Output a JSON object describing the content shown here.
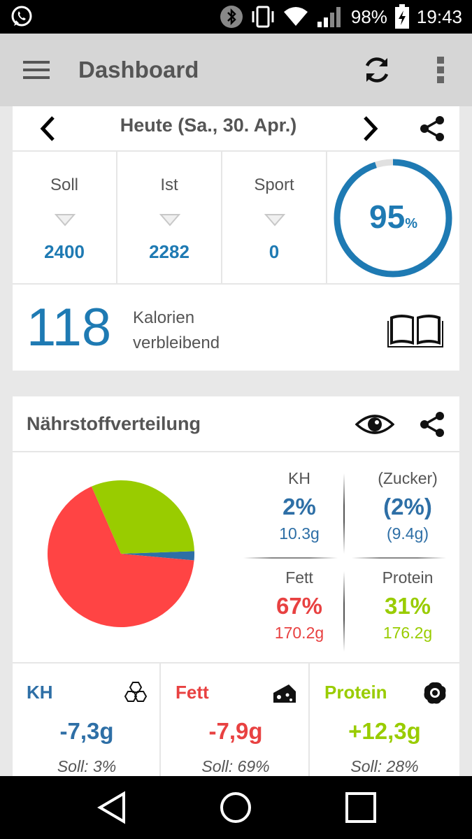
{
  "status_bar": {
    "battery_pct": "98%",
    "time": "19:43",
    "icons": [
      "whatsapp-icon",
      "bluetooth-icon",
      "vibrate-icon",
      "wifi-icon",
      "signal-icon",
      "battery-charging-icon"
    ]
  },
  "app_bar": {
    "title": "Dashboard",
    "icons": [
      "menu-icon",
      "refresh-icon",
      "more-vert-icon"
    ]
  },
  "date_nav": {
    "label": "Heute (Sa., 30. Apr.)"
  },
  "stats": {
    "soll": {
      "label": "Soll",
      "value": "2400"
    },
    "ist": {
      "label": "Ist",
      "value": "2282"
    },
    "sport": {
      "label": "Sport",
      "value": "0"
    },
    "progress": {
      "value": "95",
      "unit": "%",
      "fraction": 0.95
    }
  },
  "remaining": {
    "value": "118",
    "line1": "Kalorien",
    "line2": "verbleibend"
  },
  "nutrients": {
    "title": "Nährstoffverteilung",
    "kh": {
      "label": "KH",
      "pct": "2%",
      "grams": "10.3g"
    },
    "zucker": {
      "label": "(Zucker)",
      "pct": "(2%)",
      "grams": "(9.4g)"
    },
    "fett": {
      "label": "Fett",
      "pct": "67%",
      "grams": "170.2g"
    },
    "protein": {
      "label": "Protein",
      "pct": "31%",
      "grams": "176.2g"
    }
  },
  "chart_data": {
    "type": "pie",
    "categories": [
      "KH",
      "Fett",
      "Protein"
    ],
    "values": [
      2,
      67,
      31
    ],
    "colors": [
      "#2e6fa6",
      "#ff4444",
      "#99cc00"
    ]
  },
  "diffs": {
    "kh": {
      "label": "KH",
      "value": "-7,3g",
      "soll": "Soll: 3%"
    },
    "fett": {
      "label": "Fett",
      "value": "-7,9g",
      "soll": "Soll: 69%"
    },
    "protein": {
      "label": "Protein",
      "value": "+12,3g",
      "soll": "Soll: 28%"
    }
  },
  "colors": {
    "blue": "#1e7ab3",
    "red": "#e84141",
    "green": "#99cc00"
  }
}
